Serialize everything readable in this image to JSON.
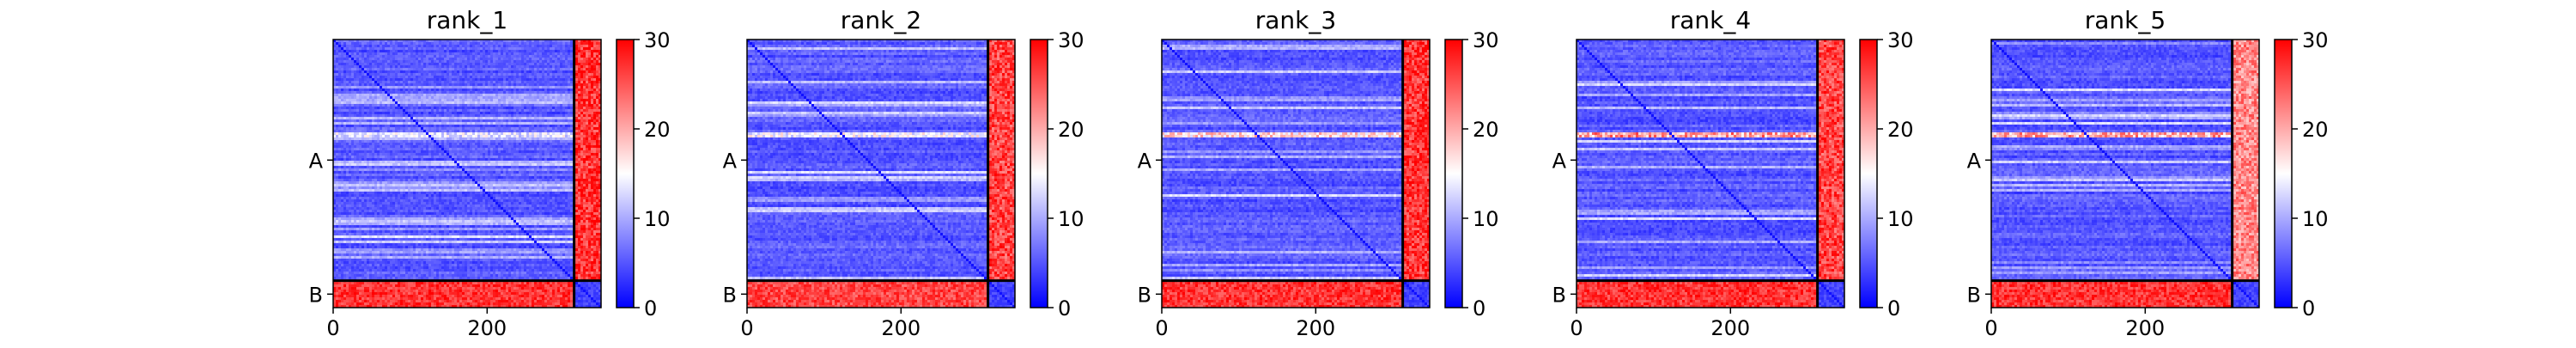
{
  "figure": {
    "background": "#ffffff"
  },
  "colormap": {
    "low": "#0000ff",
    "mid": "#ffffff",
    "high": "#ff0000"
  },
  "chart_data": [
    {
      "type": "heatmap",
      "title": "rank_1",
      "x_ticks": [
        "0",
        "200"
      ],
      "y_ticks": [
        "A",
        "B"
      ],
      "colorbar": {
        "ticks": [
          "0",
          "10",
          "20",
          "30"
        ],
        "range": [
          0,
          30
        ]
      },
      "regions": {
        "A_len": 313,
        "B_len": 35
      },
      "xlim": [
        0,
        348
      ],
      "block_values": {
        "AA": 4,
        "AB": 27,
        "BA": 27,
        "BB": 4
      },
      "diagonal_value": 1,
      "highlight_row": {
        "row": 122,
        "value": 14
      }
    },
    {
      "type": "heatmap",
      "title": "rank_2",
      "x_ticks": [
        "0",
        "200"
      ],
      "y_ticks": [
        "A",
        "B"
      ],
      "colorbar": {
        "ticks": [
          "0",
          "10",
          "20",
          "30"
        ],
        "range": [
          0,
          30
        ]
      },
      "regions": {
        "A_len": 313,
        "B_len": 35
      },
      "xlim": [
        0,
        348
      ],
      "block_values": {
        "AA": 4,
        "AB": 26,
        "BA": 26,
        "BB": 4
      },
      "diagonal_value": 1,
      "highlight_row": {
        "row": 122,
        "value": 15
      }
    },
    {
      "type": "heatmap",
      "title": "rank_3",
      "x_ticks": [
        "0",
        "200"
      ],
      "y_ticks": [
        "A",
        "B"
      ],
      "colorbar": {
        "ticks": [
          "0",
          "10",
          "20",
          "30"
        ],
        "range": [
          0,
          30
        ]
      },
      "regions": {
        "A_len": 313,
        "B_len": 35
      },
      "xlim": [
        0,
        348
      ],
      "block_values": {
        "AA": 4,
        "AB": 27,
        "BA": 27,
        "BB": 4
      },
      "diagonal_value": 1,
      "highlight_row": {
        "row": 122,
        "value": 18
      }
    },
    {
      "type": "heatmap",
      "title": "rank_4",
      "x_ticks": [
        "0",
        "200"
      ],
      "y_ticks": [
        "A",
        "B"
      ],
      "colorbar": {
        "ticks": [
          "0",
          "10",
          "20",
          "30"
        ],
        "range": [
          0,
          30
        ]
      },
      "regions": {
        "A_len": 313,
        "B_len": 35
      },
      "xlim": [
        0,
        348
      ],
      "block_values": {
        "AA": 4,
        "AB": 26,
        "BA": 27,
        "BB": 4
      },
      "diagonal_value": 1,
      "highlight_row": {
        "row": 122,
        "value": 22
      }
    },
    {
      "type": "heatmap",
      "title": "rank_5",
      "x_ticks": [
        "0",
        "200"
      ],
      "y_ticks": [
        "A",
        "B"
      ],
      "colorbar": {
        "ticks": [
          "0",
          "10",
          "20",
          "30"
        ],
        "range": [
          0,
          30
        ]
      },
      "regions": {
        "A_len": 313,
        "B_len": 35
      },
      "xlim": [
        0,
        348
      ],
      "block_values": {
        "AA": 4,
        "AB": 22,
        "BA": 27,
        "BB": 4
      },
      "diagonal_value": 1,
      "highlight_row": {
        "row": 122,
        "value": 21
      }
    }
  ]
}
